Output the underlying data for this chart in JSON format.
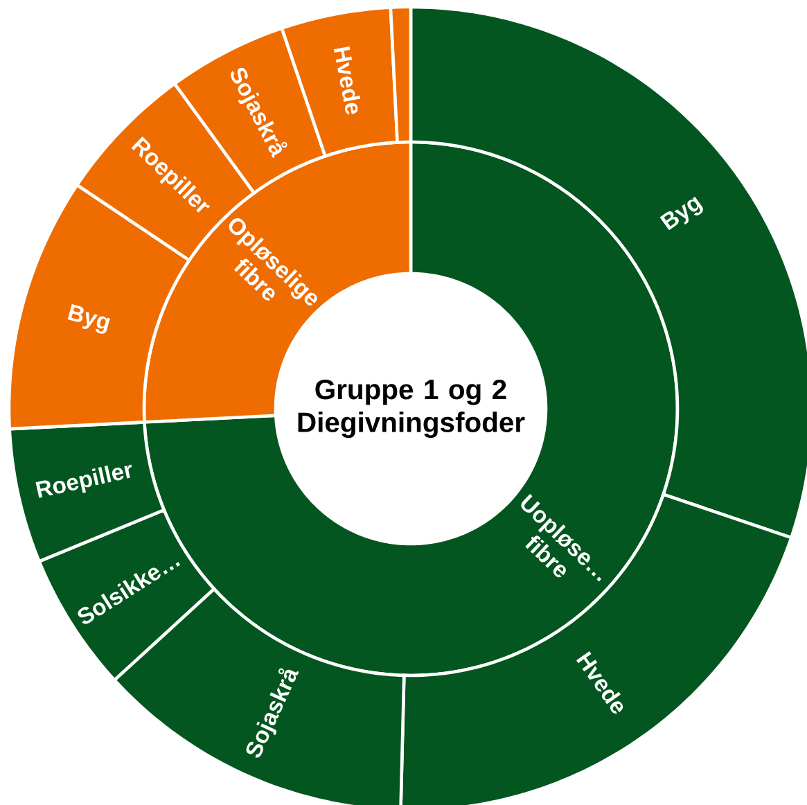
{
  "chart_data": [
    {
      "type": "donut",
      "title": "Gruppe 1 og 2 Diegivningsfoder",
      "categories": [
        "Uopløse… fibre",
        "Opløselige fibre"
      ],
      "values": [
        74.2,
        25.8
      ],
      "colors": [
        "#03561f",
        "#ef6c00"
      ]
    },
    {
      "type": "donut",
      "categories": [
        "Byg",
        "Hvede",
        "Sojaskrå",
        "Solsikke…",
        "Roepiller",
        "Byg",
        "Roepiller",
        "Sojaskrå",
        "Hvede",
        null
      ],
      "values": [
        30.2,
        20.2,
        12.8,
        5.6,
        5.4,
        10.2,
        5.6,
        4.8,
        4.4,
        0.8
      ],
      "colors": [
        "#03561f",
        "#03561f",
        "#03561f",
        "#03561f",
        "#03561f",
        "#ef6c00",
        "#ef6c00",
        "#ef6c00",
        "#ef6c00",
        "#ef6c00"
      ]
    }
  ]
}
